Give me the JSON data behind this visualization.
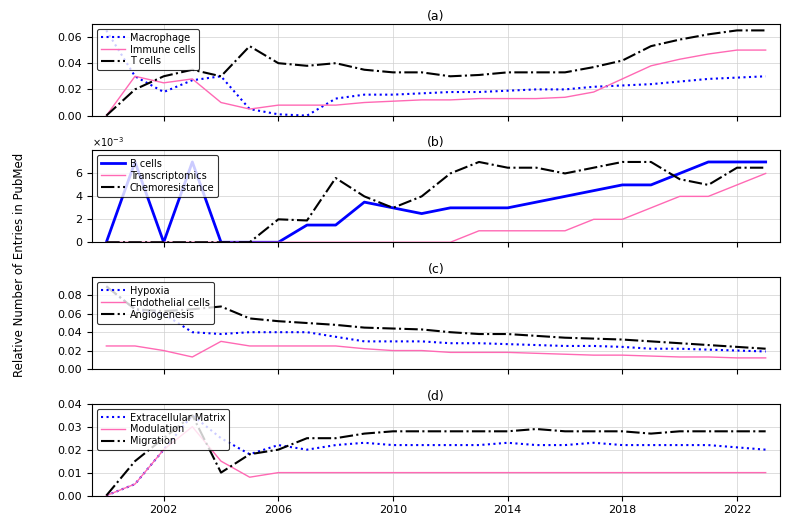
{
  "years": [
    2000,
    2001,
    2002,
    2003,
    2004,
    2005,
    2006,
    2007,
    2008,
    2009,
    2010,
    2011,
    2012,
    2013,
    2014,
    2015,
    2016,
    2017,
    2018,
    2019,
    2020,
    2021,
    2022,
    2023
  ],
  "ylabel": "Relative Number of Entries in PubMed",
  "panel_labels": [
    "(a)",
    "(b)",
    "(c)",
    "(d)"
  ],
  "panel_a": {
    "macrophage": [
      0.065,
      0.03,
      0.018,
      0.027,
      0.03,
      0.005,
      0.001,
      0.0,
      0.013,
      0.016,
      0.016,
      0.017,
      0.018,
      0.018,
      0.019,
      0.02,
      0.02,
      0.022,
      0.023,
      0.024,
      0.026,
      0.028,
      0.029,
      0.03
    ],
    "immune_cells": [
      0.0,
      0.03,
      0.025,
      0.028,
      0.01,
      0.005,
      0.008,
      0.008,
      0.008,
      0.01,
      0.011,
      0.012,
      0.012,
      0.013,
      0.013,
      0.013,
      0.014,
      0.018,
      0.028,
      0.038,
      0.043,
      0.047,
      0.05,
      0.05
    ],
    "t_cells": [
      0.0,
      0.02,
      0.03,
      0.035,
      0.03,
      0.053,
      0.04,
      0.038,
      0.04,
      0.035,
      0.033,
      0.033,
      0.03,
      0.031,
      0.033,
      0.033,
      0.033,
      0.037,
      0.042,
      0.053,
      0.058,
      0.062,
      0.065,
      0.065
    ],
    "ylim": [
      0,
      0.07
    ],
    "yticks": [
      0,
      0.02,
      0.04,
      0.06
    ],
    "legend_loc": "upper left"
  },
  "panel_b": {
    "b_cells": [
      0.0,
      0.007,
      0.0,
      0.007,
      0.0,
      0.0,
      0.0,
      0.0015,
      0.0015,
      0.0035,
      0.003,
      0.0025,
      0.003,
      0.003,
      0.003,
      0.0035,
      0.004,
      0.0045,
      0.005,
      0.005,
      0.006,
      0.007,
      0.007,
      0.007
    ],
    "transcriptomics": [
      0.0,
      0.0,
      0.0,
      0.0,
      0.0,
      0.0,
      0.0,
      0.0,
      0.0,
      0.0,
      0.0,
      0.0,
      0.0,
      0.001,
      0.001,
      0.001,
      0.001,
      0.002,
      0.002,
      0.003,
      0.004,
      0.004,
      0.005,
      0.006
    ],
    "chemoresistance": [
      0.0,
      0.0,
      0.0,
      0.0,
      0.0,
      0.0,
      0.002,
      0.0019,
      0.0056,
      0.004,
      0.003,
      0.004,
      0.006,
      0.007,
      0.0065,
      0.0065,
      0.006,
      0.0065,
      0.007,
      0.007,
      0.0055,
      0.005,
      0.0065,
      0.0065
    ],
    "ylim": [
      0,
      0.008
    ],
    "yticks": [
      0,
      0.002,
      0.004,
      0.006
    ],
    "legend_loc": "upper left"
  },
  "panel_c": {
    "hypoxia": [
      0.09,
      0.065,
      0.06,
      0.04,
      0.038,
      0.04,
      0.04,
      0.04,
      0.035,
      0.03,
      0.03,
      0.03,
      0.028,
      0.028,
      0.027,
      0.026,
      0.025,
      0.025,
      0.024,
      0.022,
      0.022,
      0.021,
      0.02,
      0.019
    ],
    "endothelial_cells": [
      0.025,
      0.025,
      0.02,
      0.013,
      0.03,
      0.025,
      0.025,
      0.025,
      0.025,
      0.022,
      0.02,
      0.02,
      0.018,
      0.018,
      0.018,
      0.017,
      0.016,
      0.015,
      0.015,
      0.014,
      0.013,
      0.013,
      0.012,
      0.012
    ],
    "angiogenesis": [
      0.09,
      0.065,
      0.063,
      0.065,
      0.068,
      0.055,
      0.052,
      0.05,
      0.048,
      0.045,
      0.044,
      0.043,
      0.04,
      0.038,
      0.038,
      0.036,
      0.034,
      0.033,
      0.032,
      0.03,
      0.028,
      0.026,
      0.024,
      0.022
    ],
    "ylim": [
      0,
      0.1
    ],
    "yticks": [
      0,
      0.02,
      0.04,
      0.06,
      0.08
    ],
    "legend_loc": "upper left"
  },
  "panel_d": {
    "extracellular_matrix": [
      0.0,
      0.005,
      0.02,
      0.035,
      0.025,
      0.018,
      0.022,
      0.02,
      0.022,
      0.023,
      0.022,
      0.022,
      0.022,
      0.022,
      0.023,
      0.022,
      0.022,
      0.023,
      0.022,
      0.022,
      0.022,
      0.022,
      0.021,
      0.02
    ],
    "modulation": [
      0.0,
      0.005,
      0.02,
      0.03,
      0.015,
      0.008,
      0.01,
      0.01,
      0.01,
      0.01,
      0.01,
      0.01,
      0.01,
      0.01,
      0.01,
      0.01,
      0.01,
      0.01,
      0.01,
      0.01,
      0.01,
      0.01,
      0.01,
      0.01
    ],
    "migration": [
      0.0,
      0.015,
      0.025,
      0.035,
      0.01,
      0.018,
      0.02,
      0.025,
      0.025,
      0.027,
      0.028,
      0.028,
      0.028,
      0.028,
      0.028,
      0.029,
      0.028,
      0.028,
      0.028,
      0.027,
      0.028,
      0.028,
      0.028,
      0.028
    ],
    "ylim": [
      0,
      0.04
    ],
    "yticks": [
      0,
      0.01,
      0.02,
      0.03,
      0.04
    ],
    "legend_loc": "upper left"
  },
  "colors": {
    "blue": "#0000FF",
    "pink": "#FF69B4",
    "black": "#000000"
  },
  "xticks": [
    2002,
    2006,
    2010,
    2014,
    2018,
    2022
  ],
  "xlim": [
    1999.5,
    2023.5
  ]
}
